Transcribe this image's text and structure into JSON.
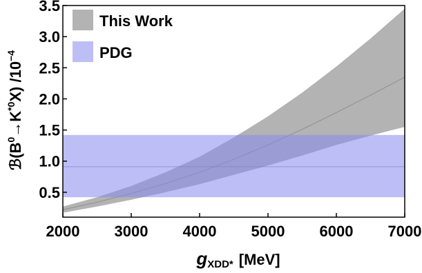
{
  "chart_data": {
    "type": "area",
    "title": "",
    "xlabel": {
      "main": "g",
      "subscript": "XDD*",
      "suffix": "[MeV]"
    },
    "ylabel": {
      "prefix": "ℬ(B",
      "sup1": "0",
      "mid": "→K",
      "sup2": "*0",
      "suffix": "X) /10",
      "sup3": "−4"
    },
    "xlim": [
      2000,
      7000
    ],
    "ylim": [
      0.1,
      3.5
    ],
    "xticks": [
      2000,
      3000,
      4000,
      5000,
      6000,
      7000
    ],
    "yticks": [
      0.5,
      1.0,
      1.5,
      2.0,
      2.5,
      3.0,
      3.5
    ],
    "ytick_labels": [
      "0.5",
      "1.0",
      "1.5",
      "2.0",
      "2.5",
      "3.0",
      "3.5"
    ],
    "legend_position": "top-left",
    "series": [
      {
        "name": "This Work",
        "kind": "band",
        "color": "#999999",
        "opacity": 0.75,
        "x": [
          2000,
          2500,
          3000,
          3500,
          4000,
          4500,
          5000,
          5500,
          6000,
          6500,
          7000
        ],
        "lower": [
          0.17,
          0.27,
          0.38,
          0.5,
          0.63,
          0.78,
          0.93,
          1.09,
          1.26,
          1.41,
          1.55
        ],
        "center": [
          0.22,
          0.34,
          0.48,
          0.64,
          0.82,
          1.03,
          1.26,
          1.51,
          1.78,
          2.06,
          2.35
        ],
        "upper": [
          0.27,
          0.42,
          0.6,
          0.82,
          1.07,
          1.38,
          1.72,
          2.1,
          2.52,
          2.97,
          3.45
        ]
      },
      {
        "name": "PDG",
        "kind": "hband",
        "color": "#8888ee",
        "opacity": 0.55,
        "lower": 0.42,
        "center": 0.91,
        "upper": 1.42
      }
    ]
  }
}
